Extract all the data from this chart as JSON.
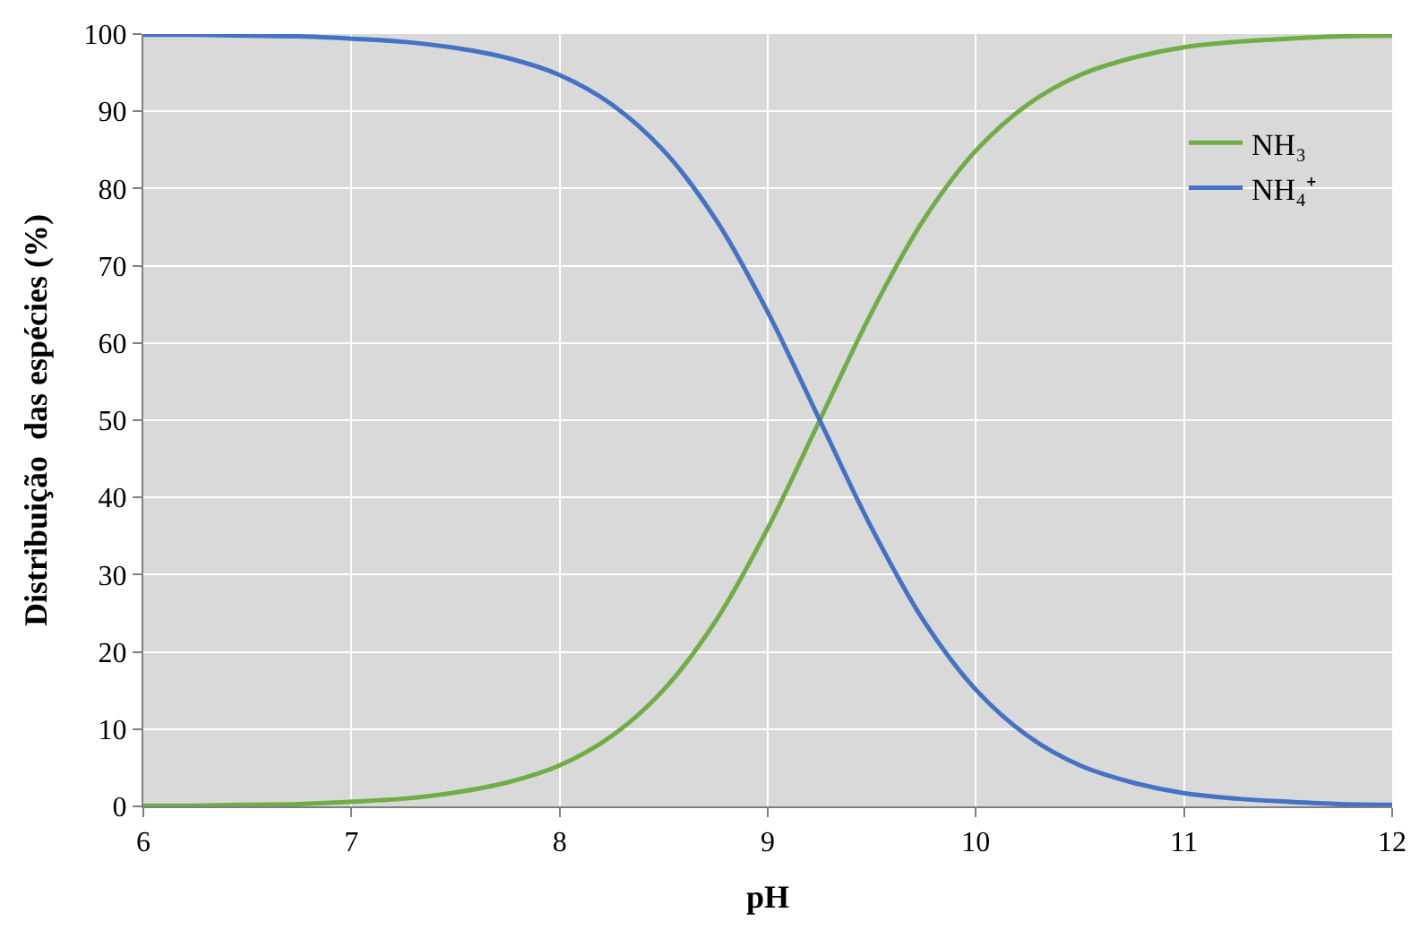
{
  "chart_data": {
    "type": "line",
    "xlabel": "pH",
    "ylabel": "Distribuição  das espécies (%)",
    "x": [
      6,
      6.25,
      6.5,
      6.75,
      7,
      7.25,
      7.5,
      7.75,
      8,
      8.25,
      8.5,
      8.75,
      9,
      9.25,
      9.5,
      9.75,
      10,
      10.25,
      10.5,
      10.75,
      11,
      11.25,
      11.5,
      11.75,
      12
    ],
    "series": [
      {
        "name": "NH₃",
        "color": "#70ad47",
        "values": [
          0.1,
          0.1,
          0.2,
          0.3,
          0.6,
          1.0,
          1.8,
          3.1,
          5.3,
          9.1,
          15.1,
          24.0,
          36.0,
          50.0,
          64.0,
          76.0,
          84.9,
          90.9,
          94.7,
          96.9,
          98.3,
          99.0,
          99.4,
          99.7,
          99.8
        ]
      },
      {
        "name": "NH₄⁺",
        "color": "#4472c4",
        "values": [
          99.9,
          99.9,
          99.8,
          99.7,
          99.4,
          99.0,
          98.2,
          96.9,
          94.7,
          90.9,
          84.9,
          76.0,
          64.0,
          50.0,
          36.0,
          24.0,
          15.1,
          9.1,
          5.3,
          3.1,
          1.7,
          1.0,
          0.6,
          0.3,
          0.2
        ]
      }
    ],
    "xlim": [
      6,
      12
    ],
    "xticks": [
      6,
      7,
      8,
      9,
      10,
      11,
      12
    ],
    "ylim": [
      0,
      100
    ],
    "yticks": [
      0,
      10,
      20,
      30,
      40,
      50,
      60,
      70,
      80,
      90,
      100
    ],
    "grid": true,
    "legend": "top right",
    "marker": "none",
    "line_style": "solid"
  }
}
